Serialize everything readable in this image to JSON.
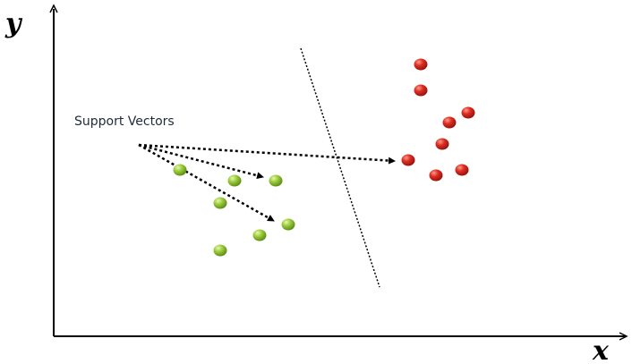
{
  "axes": {
    "y_label": "y",
    "x_label": "x"
  },
  "annotation": "Support Vectors"
}
